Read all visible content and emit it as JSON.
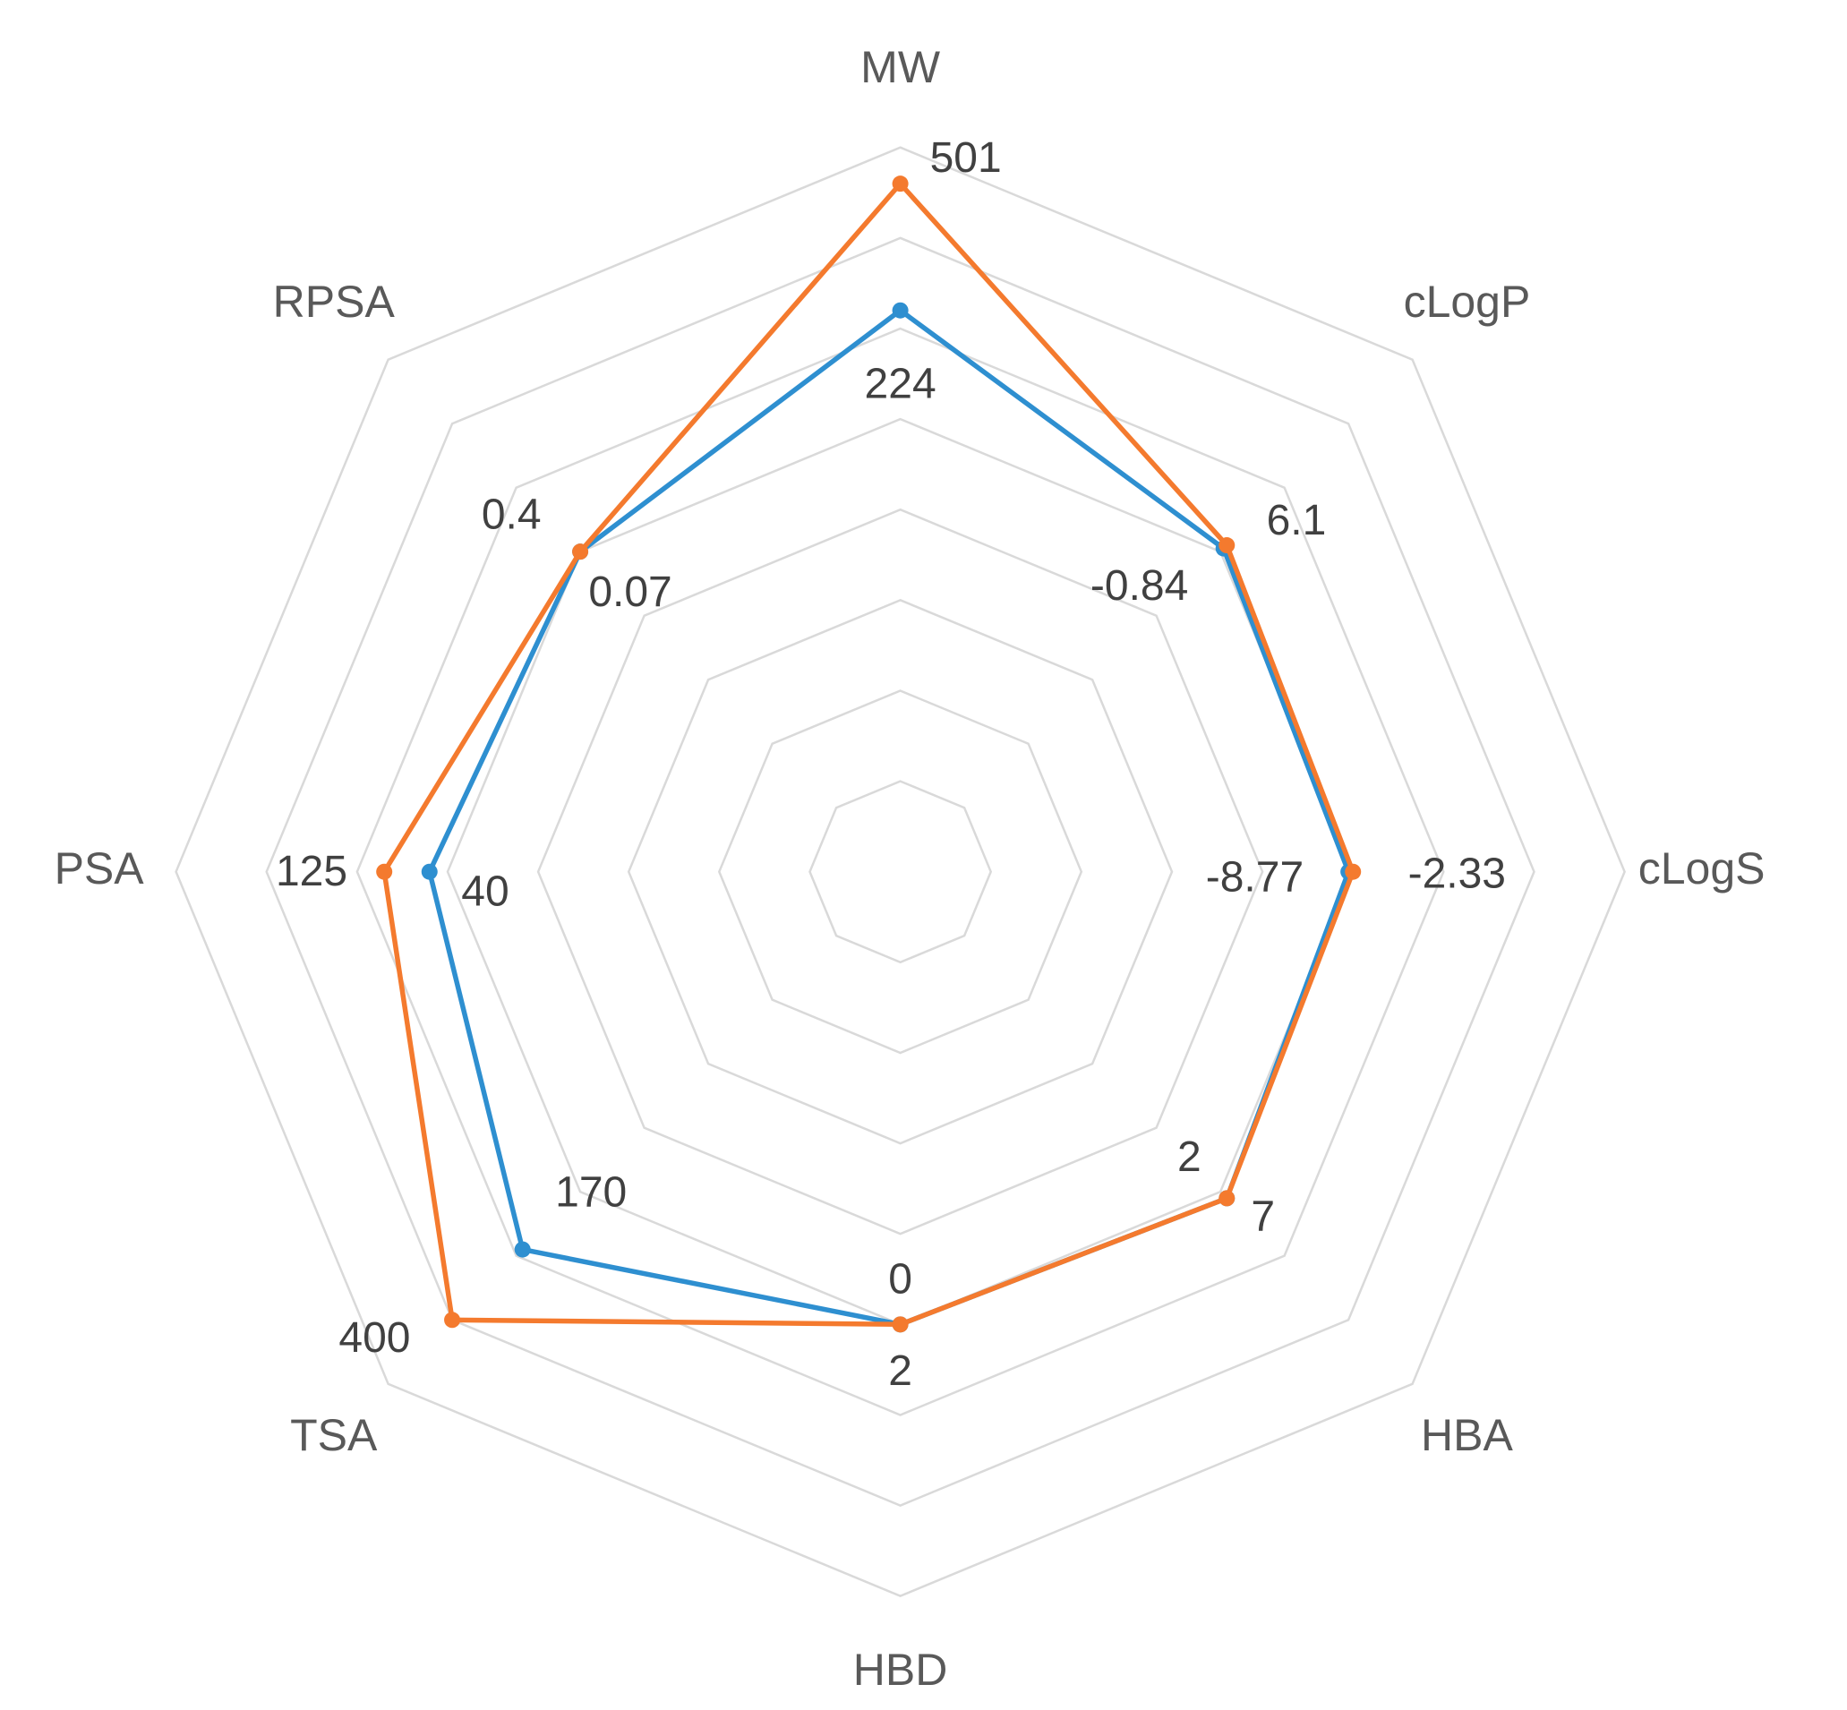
{
  "chart_data": {
    "type": "radar",
    "categories": [
      "MW",
      "cLogP",
      "cLogS",
      "HBA",
      "HBD",
      "TSA",
      "PSA",
      "RPSA"
    ],
    "ranges": [
      [
        "224",
        "501"
      ],
      [
        "-0.84",
        "6.1"
      ],
      [
        "-8.77",
        "-2.33"
      ],
      [
        "2",
        "7"
      ],
      [
        "0",
        "2"
      ],
      [
        "170",
        "400"
      ],
      [
        "40",
        "125"
      ],
      [
        "0.07",
        "0.4"
      ]
    ],
    "rlim": [
      0,
      8
    ],
    "rticks": [
      1,
      2,
      3,
      4,
      5,
      6,
      7,
      8
    ],
    "grid": true,
    "series": [
      {
        "color": "#2e8fd0",
        "values": [
          6.2,
          5.05,
          4.95,
          5.1,
          5.0,
          5.9,
          5.2,
          5.0
        ]
      },
      {
        "color": "#f47a2e",
        "values": [
          7.6,
          5.1,
          5.0,
          5.1,
          5.0,
          7.0,
          5.7,
          5.0
        ]
      }
    ]
  }
}
